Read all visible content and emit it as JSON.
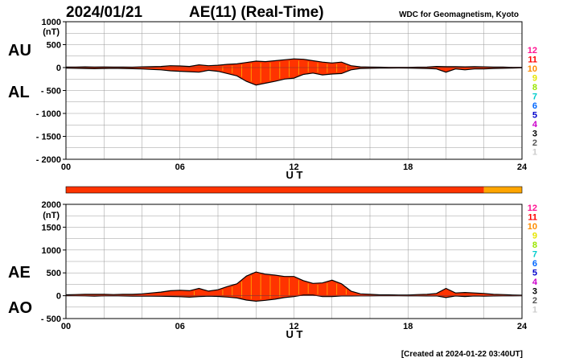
{
  "header": {
    "date": "2024/01/21",
    "title": "AE(11) (Real-Time)",
    "organization": "WDC for Geomagnetism, Kyoto"
  },
  "footer": {
    "created": "[Created at 2024-01-22 03:40UT]"
  },
  "level_scale": {
    "labels": [
      "12",
      "11",
      "10",
      "9",
      "8",
      "7",
      "6",
      "5",
      "4",
      "3",
      "2",
      "1"
    ],
    "colors": [
      "#ff1493",
      "#ff0000",
      "#ff8c00",
      "#e6e600",
      "#99e600",
      "#00cccc",
      "#0066ff",
      "#0000cc",
      "#cc00cc",
      "#000000",
      "#555555",
      "#cccccc"
    ]
  },
  "colors": {
    "fill": "#ff3300",
    "stripe": "#ff9900",
    "recent": "#ffa500",
    "line": "#000000",
    "grid": "#999999"
  },
  "chart_data": [
    {
      "type": "area",
      "panel": "AU/AL",
      "labels": [
        "AU",
        "AL"
      ],
      "unit": "(nT)",
      "xlabel": "U T",
      "xlim": [
        0,
        24
      ],
      "ylim": [
        -2000,
        1000
      ],
      "x_ticks": [
        "00",
        "06",
        "12",
        "18",
        "24"
      ],
      "y_ticks": [
        "1000",
        "500",
        "0",
        "- 500",
        "- 1000",
        "- 1500",
        "- 2000"
      ],
      "y_tick_values": [
        1000,
        500,
        0,
        -500,
        -1000,
        -1500,
        -2000
      ],
      "grid": true,
      "x": [
        0,
        0.5,
        1,
        1.5,
        2,
        2.5,
        3,
        3.5,
        4,
        4.5,
        5,
        5.5,
        6,
        6.5,
        7,
        7.5,
        8,
        8.5,
        9,
        9.5,
        10,
        10.5,
        11,
        11.5,
        12,
        12.5,
        13,
        13.5,
        14,
        14.5,
        15,
        15.5,
        16,
        16.5,
        17,
        17.5,
        18,
        18.5,
        19,
        19.5,
        20,
        20.5,
        21,
        21.5,
        22,
        22.5,
        23,
        23.5,
        24
      ],
      "series": [
        {
          "name": "AU",
          "values": [
            10,
            12,
            15,
            10,
            14,
            12,
            10,
            8,
            15,
            20,
            25,
            40,
            35,
            25,
            60,
            40,
            50,
            70,
            80,
            110,
            140,
            130,
            150,
            170,
            190,
            180,
            150,
            120,
            100,
            120,
            40,
            15,
            10,
            8,
            6,
            5,
            5,
            8,
            10,
            25,
            20,
            20,
            15,
            20,
            15,
            10,
            10,
            5,
            5
          ]
        },
        {
          "name": "AL",
          "values": [
            -10,
            -15,
            -20,
            -25,
            -20,
            -15,
            -20,
            -25,
            -30,
            -40,
            -50,
            -70,
            -80,
            -90,
            -100,
            -60,
            -80,
            -130,
            -180,
            -300,
            -380,
            -340,
            -300,
            -250,
            -230,
            -150,
            -120,
            -160,
            -140,
            -130,
            -50,
            -20,
            -15,
            -10,
            -10,
            -8,
            -10,
            -15,
            -20,
            -30,
            -100,
            -30,
            -50,
            -30,
            -30,
            -20,
            -15,
            -10,
            -5
          ]
        }
      ]
    },
    {
      "type": "area",
      "panel": "AE/AO",
      "labels": [
        "AE",
        "AO"
      ],
      "unit": "(nT)",
      "xlabel": "U T",
      "xlim": [
        0,
        24
      ],
      "ylim": [
        -500,
        2000
      ],
      "x_ticks": [
        "00",
        "06",
        "12",
        "18",
        "24"
      ],
      "y_ticks": [
        "2000",
        "1500",
        "1000",
        "500",
        "0",
        "- 500"
      ],
      "y_tick_values": [
        2000,
        1500,
        1000,
        500,
        0,
        -500
      ],
      "grid": true,
      "x": [
        0,
        0.5,
        1,
        1.5,
        2,
        2.5,
        3,
        3.5,
        4,
        4.5,
        5,
        5.5,
        6,
        6.5,
        7,
        7.5,
        8,
        8.5,
        9,
        9.5,
        10,
        10.5,
        11,
        11.5,
        12,
        12.5,
        13,
        13.5,
        14,
        14.5,
        15,
        15.5,
        16,
        16.5,
        17,
        17.5,
        18,
        18.5,
        19,
        19.5,
        20,
        20.5,
        21,
        21.5,
        22,
        22.5,
        23,
        23.5,
        24
      ],
      "series": [
        {
          "name": "AE",
          "values": [
            20,
            25,
            30,
            30,
            30,
            25,
            30,
            30,
            40,
            60,
            80,
            110,
            120,
            110,
            160,
            100,
            130,
            200,
            260,
            430,
            520,
            470,
            450,
            420,
            420,
            330,
            270,
            280,
            340,
            260,
            100,
            40,
            30,
            20,
            20,
            15,
            15,
            25,
            30,
            50,
            160,
            60,
            70,
            60,
            50,
            30,
            25,
            15,
            10
          ]
        },
        {
          "name": "AO",
          "values": [
            0,
            -2,
            -3,
            -8,
            -3,
            -2,
            -5,
            -8,
            -8,
            -10,
            -12,
            -15,
            -22,
            -32,
            -20,
            -10,
            -15,
            -30,
            -50,
            -95,
            -120,
            -100,
            -75,
            -40,
            -20,
            15,
            15,
            -20,
            -20,
            -5,
            -5,
            -3,
            -3,
            -1,
            -2,
            -2,
            -3,
            -4,
            -5,
            -3,
            -40,
            -5,
            -18,
            -5,
            -8,
            -5,
            -3,
            -3,
            0
          ]
        }
      ]
    }
  ]
}
